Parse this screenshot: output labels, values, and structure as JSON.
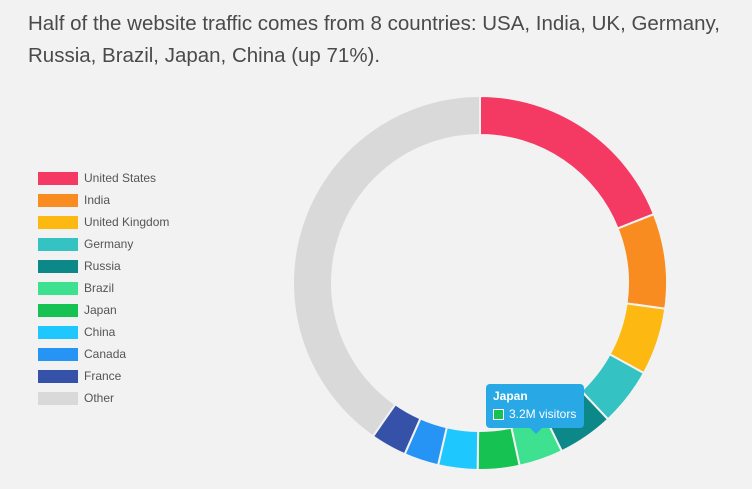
{
  "headline": "Half of the website traffic comes from 8 countries: USA, India, UK, Germany, Russia, Brazil, Japan, China (up 71%).",
  "tooltip": {
    "title": "Japan",
    "text": "3.2M visitors",
    "color": "#16c251"
  },
  "chart_data": {
    "type": "pie",
    "variant": "doughnut",
    "title": "Half of the website traffic comes from 8 countries: USA, India, UK, Germany, Russia, Brazil, Japan, China (up 71%).",
    "legend_position": "left",
    "series": [
      {
        "name": "United States",
        "value": 19.0,
        "color": "#f43a63"
      },
      {
        "name": "India",
        "value": 8.2,
        "color": "#f98c20"
      },
      {
        "name": "United Kingdom",
        "value": 5.8,
        "color": "#fdb812"
      },
      {
        "name": "Germany",
        "value": 5.0,
        "color": "#34c3c2"
      },
      {
        "name": "Russia",
        "value": 4.8,
        "color": "#0d8889"
      },
      {
        "name": "Brazil",
        "value": 3.8,
        "color": "#3de18f"
      },
      {
        "name": "Japan",
        "value": 3.6,
        "color": "#16c251"
      },
      {
        "name": "China",
        "value": 3.4,
        "color": "#1ec8ff"
      },
      {
        "name": "Canada",
        "value": 3.0,
        "color": "#2594f5"
      },
      {
        "name": "France",
        "value": 3.1,
        "color": "#3552a8"
      },
      {
        "name": "Other",
        "value": 40.3,
        "color": "#d9d9d9"
      }
    ]
  }
}
